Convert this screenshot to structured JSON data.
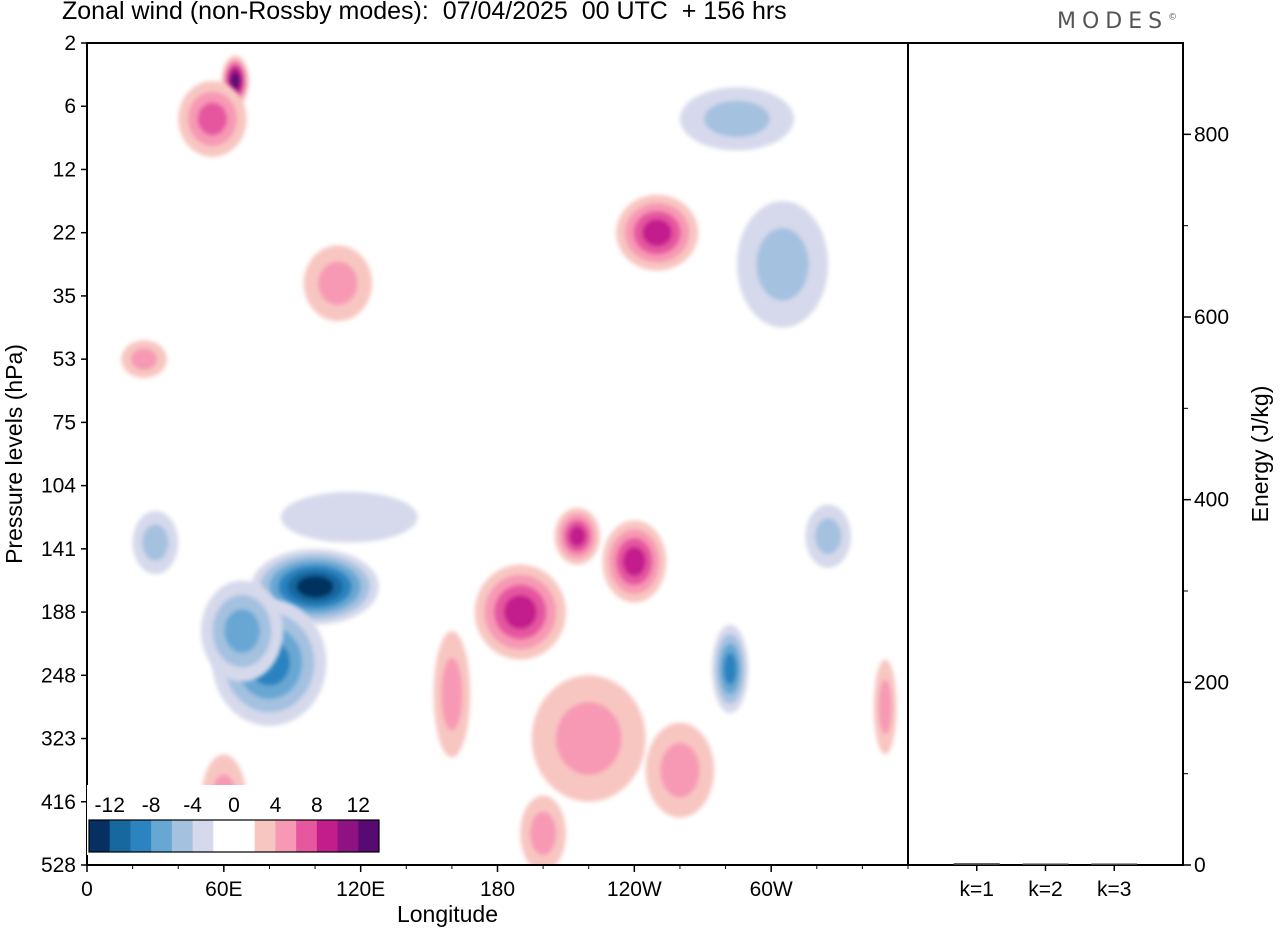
{
  "title": "Zonal wind (non-Rossby modes):  07/04/2025  00 UTC  + 156 hrs",
  "brand": "MODES",
  "brand_mark": "©",
  "colors": {
    "neg": [
      "#053061",
      "#17689f",
      "#2b83c0",
      "#67a7d3",
      "#a4c1e0",
      "#d6d9eb"
    ],
    "pos": [
      "#f8c6c1",
      "#f799b4",
      "#e657a0",
      "#c31d8c",
      "#8e1282",
      "#580a73"
    ],
    "zero": "#ffffff"
  },
  "chart_data": [
    {
      "type": "heatmap",
      "title": "Zonal wind (non-Rossby modes):  07/04/2025  00 UTC  + 156 hrs",
      "xlabel": "Longitude",
      "ylabel": "Pressure levels (hPa)",
      "x_ticks": [
        "0",
        "60E",
        "120E",
        "180",
        "120W",
        "60W"
      ],
      "x_range": [
        0,
        360
      ],
      "y_ticks": [
        "2",
        "6",
        "12",
        "22",
        "35",
        "53",
        "75",
        "104",
        "141",
        "188",
        "248",
        "323",
        "416",
        "528"
      ],
      "colorbar": {
        "tick_labels": [
          "-12",
          "-8",
          "-4",
          "0",
          "4",
          "8",
          "12"
        ],
        "levels": [
          -14,
          -12,
          -10,
          -8,
          -6,
          -4,
          -2,
          2,
          4,
          6,
          8,
          10,
          12,
          14
        ]
      },
      "features": [
        {
          "lon": 100,
          "level": 8.6,
          "value": -13,
          "lon_extent": 28,
          "level_extent": 1.2
        },
        {
          "lon": 80,
          "level": 9.8,
          "value": -9,
          "lon_extent": 25,
          "level_extent": 2.0
        },
        {
          "lon": 68,
          "level": 9.3,
          "value": -7,
          "lon_extent": 18,
          "level_extent": 1.6
        },
        {
          "lon": 115,
          "level": 7.5,
          "value": -3,
          "lon_extent": 30,
          "level_extent": 0.8
        },
        {
          "lon": 282,
          "level": 9.9,
          "value": -8,
          "lon_extent": 8,
          "level_extent": 1.4
        },
        {
          "lon": 325,
          "level": 7.8,
          "value": -5,
          "lon_extent": 10,
          "level_extent": 1.0
        },
        {
          "lon": 30,
          "level": 7.9,
          "value": -4,
          "lon_extent": 10,
          "level_extent": 1.0
        },
        {
          "lon": 160,
          "level": 10.3,
          "value": 5,
          "lon_extent": 8,
          "level_extent": 2.0
        },
        {
          "lon": 190,
          "level": 9.0,
          "value": 9,
          "lon_extent": 20,
          "level_extent": 1.5
        },
        {
          "lon": 215,
          "level": 7.8,
          "value": 8,
          "lon_extent": 10,
          "level_extent": 0.9
        },
        {
          "lon": 240,
          "level": 8.2,
          "value": 9,
          "lon_extent": 14,
          "level_extent": 1.3
        },
        {
          "lon": 220,
          "level": 11.0,
          "value": 5,
          "lon_extent": 25,
          "level_extent": 2.0
        },
        {
          "lon": 260,
          "level": 11.5,
          "value": 4,
          "lon_extent": 15,
          "level_extent": 1.5
        },
        {
          "lon": 65,
          "level": 0.6,
          "value": 13,
          "lon_extent": 6,
          "level_extent": 0.8
        },
        {
          "lon": 55,
          "level": 1.2,
          "value": 7,
          "lon_extent": 15,
          "level_extent": 1.2
        },
        {
          "lon": 250,
          "level": 3.0,
          "value": 9,
          "lon_extent": 18,
          "level_extent": 1.2
        },
        {
          "lon": 305,
          "level": 3.5,
          "value": -4,
          "lon_extent": 20,
          "level_extent": 2.0
        },
        {
          "lon": 110,
          "level": 3.8,
          "value": 5,
          "lon_extent": 15,
          "level_extent": 1.2
        },
        {
          "lon": 25,
          "level": 5.0,
          "value": 5,
          "lon_extent": 10,
          "level_extent": 0.6
        },
        {
          "lon": 285,
          "level": 1.2,
          "value": -4,
          "lon_extent": 25,
          "level_extent": 1.0
        },
        {
          "lon": 60,
          "level": 12.0,
          "value": 5,
          "lon_extent": 10,
          "level_extent": 1.5
        },
        {
          "lon": 350,
          "level": 10.5,
          "value": 5,
          "lon_extent": 5,
          "level_extent": 1.5
        },
        {
          "lon": 200,
          "level": 12.5,
          "value": 4,
          "lon_extent": 10,
          "level_extent": 1.2
        }
      ]
    },
    {
      "type": "bar",
      "ylabel": "Energy (J/kg)",
      "categories": [
        "k=1",
        "k=2",
        "k=3"
      ],
      "values": [
        2,
        1.5,
        1
      ],
      "ylim": [
        0,
        900
      ],
      "y_ticks": [
        0,
        200,
        400,
        600,
        800
      ]
    }
  ]
}
